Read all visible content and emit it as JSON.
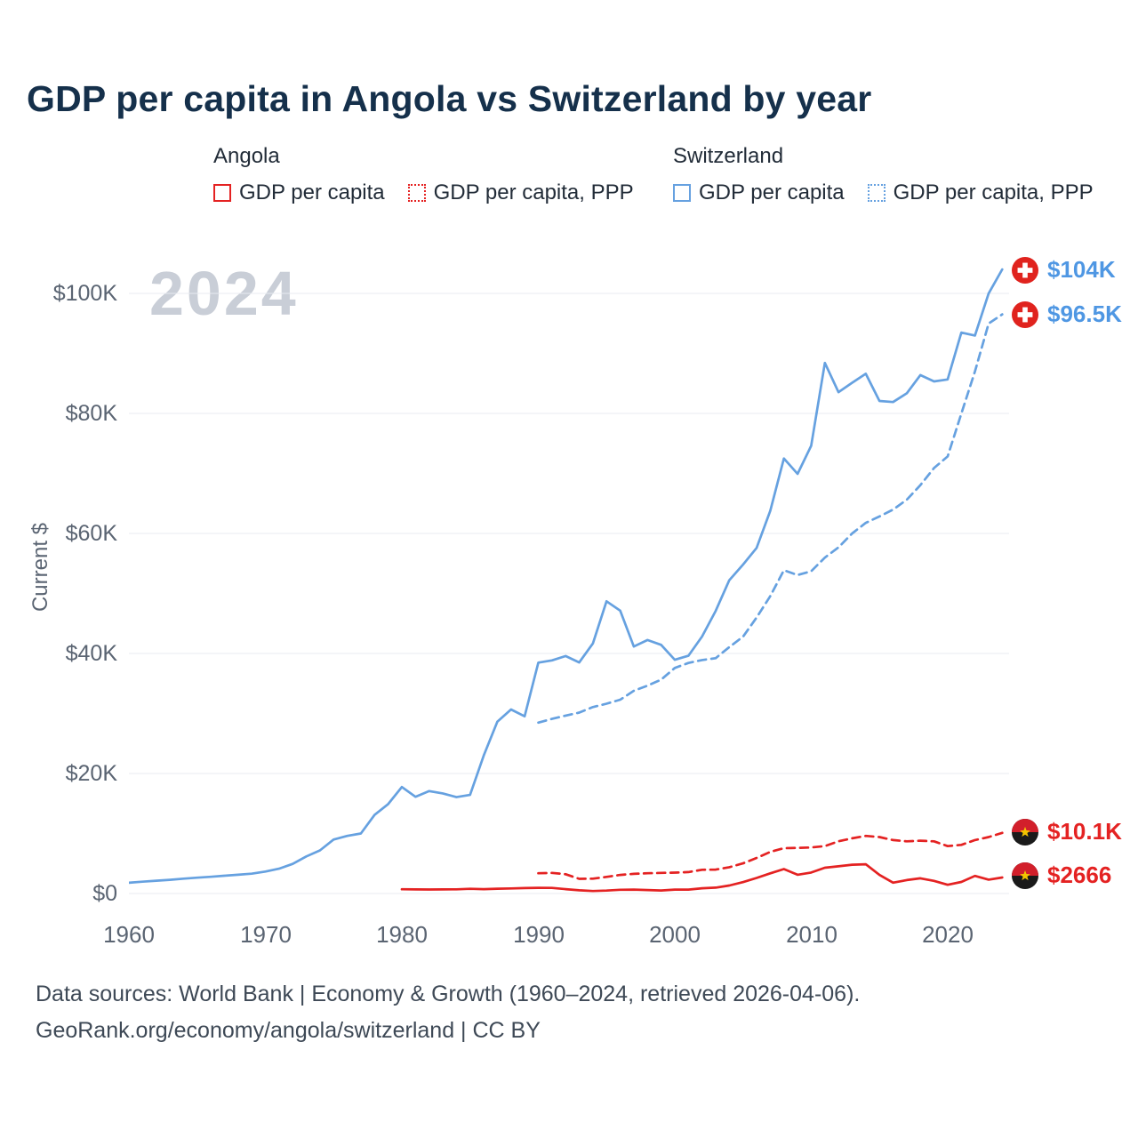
{
  "title": "GDP per capita in Angola vs Switzerland by year",
  "watermark": "2024",
  "legend": {
    "angola": {
      "label": "Angola",
      "items": [
        "GDP per capita",
        "GDP per capita, PPP"
      ]
    },
    "switzerland": {
      "label": "Switzerland",
      "items": [
        "GDP per capita",
        "GDP per capita, PPP"
      ]
    }
  },
  "axis": {
    "y_label": "Current $",
    "y_ticks": [
      "$0",
      "$20K",
      "$40K",
      "$60K",
      "$80K",
      "$100K"
    ],
    "x_ticks": [
      "1960",
      "1970",
      "1980",
      "1990",
      "2000",
      "2010",
      "2020"
    ]
  },
  "end_labels": [
    {
      "text": "$104K",
      "series": "Switzerland GDP per capita",
      "flag": "switzerland",
      "color": "#4f97e3"
    },
    {
      "text": "$96.5K",
      "series": "Switzerland GDP per capita, PPP",
      "flag": "switzerland",
      "color": "#4f97e3"
    },
    {
      "text": "$10.1K",
      "series": "Angola GDP per capita, PPP",
      "flag": "angola",
      "color": "#e42222"
    },
    {
      "text": "$2666",
      "series": "Angola GDP per capita",
      "flag": "angola",
      "color": "#e42222"
    }
  ],
  "footer": {
    "line1": "Data sources: World Bank | Economy & Growth (1960–2024, retrieved 2026-04-06).",
    "line2": "GeoRank.org/economy/angola/switzerland | CC BY"
  },
  "colors": {
    "angola": "#e42222",
    "switzerland": "#66a1e0",
    "title": "#15304b",
    "axis_text": "#5a6472",
    "watermark": "#c9ced7",
    "gridline": "#e8ebf0"
  },
  "chart_data": {
    "type": "line",
    "title": "GDP per capita in Angola vs Switzerland by year",
    "xlabel": "",
    "ylabel": "Current $",
    "xlim": [
      1960,
      2024.5
    ],
    "ylim": [
      0,
      100000
    ],
    "x_tick_values": [
      1960,
      1970,
      1980,
      1990,
      2000,
      2010,
      2020
    ],
    "y_tick_values": [
      0,
      20000,
      40000,
      60000,
      80000,
      100000
    ],
    "grid": "horizontal",
    "legend_position": "top",
    "series": [
      {
        "name": "Switzerland GDP per capita",
        "country": "Switzerland",
        "style": "solid",
        "color": "#66a1e0",
        "end_label": "$104K",
        "years": [
          1960,
          1961,
          1962,
          1963,
          1964,
          1965,
          1966,
          1967,
          1968,
          1969,
          1970,
          1971,
          1972,
          1973,
          1974,
          1975,
          1976,
          1977,
          1978,
          1979,
          1980,
          1981,
          1982,
          1983,
          1984,
          1985,
          1986,
          1987,
          1988,
          1989,
          1990,
          1991,
          1992,
          1993,
          1994,
          1995,
          1996,
          1997,
          1998,
          1999,
          2000,
          2001,
          2002,
          2003,
          2004,
          2005,
          2006,
          2007,
          2008,
          2009,
          2010,
          2011,
          2012,
          2013,
          2014,
          2015,
          2016,
          2017,
          2018,
          2019,
          2020,
          2021,
          2022,
          2023,
          2024
        ],
        "values": [
          1790,
          1970,
          2130,
          2280,
          2470,
          2630,
          2790,
          2960,
          3120,
          3310,
          3660,
          4130,
          4940,
          6180,
          7180,
          8990,
          9600,
          10000,
          13100,
          14900,
          17750,
          16120,
          17060,
          16680,
          16060,
          16430,
          23000,
          28630,
          30670,
          29530,
          38480,
          38840,
          39570,
          38500,
          41680,
          48690,
          47120,
          41160,
          42230,
          41440,
          38950,
          39620,
          42830,
          47090,
          52200,
          54800,
          57580,
          63780,
          72490,
          69930,
          74610,
          88420,
          83540,
          85110,
          86610,
          82080,
          81900,
          83350,
          86390,
          85330,
          85660,
          93460,
          92980,
          99990,
          104000
        ]
      },
      {
        "name": "Switzerland GDP per capita, PPP",
        "country": "Switzerland",
        "style": "dashed",
        "color": "#66a1e0",
        "end_label": "$96.5K",
        "years": [
          1990,
          1991,
          1992,
          1993,
          1994,
          1995,
          1996,
          1997,
          1998,
          1999,
          2000,
          2001,
          2002,
          2003,
          2004,
          2005,
          2006,
          2007,
          2008,
          2009,
          2010,
          2011,
          2012,
          2013,
          2014,
          2015,
          2016,
          2017,
          2018,
          2019,
          2020,
          2021,
          2022,
          2023,
          2024
        ],
        "values": [
          28480,
          29090,
          29640,
          30150,
          31060,
          31630,
          32300,
          33780,
          34640,
          35630,
          37580,
          38410,
          38910,
          39210,
          41060,
          42790,
          45990,
          49560,
          53870,
          53070,
          53700,
          55970,
          57680,
          60000,
          61770,
          62830,
          63970,
          65610,
          68040,
          70900,
          72830,
          79970,
          87000,
          94980,
          96500
        ]
      },
      {
        "name": "Angola GDP per capita",
        "country": "Angola",
        "style": "solid",
        "color": "#e42222",
        "end_label": "$2666",
        "years": [
          1980,
          1981,
          1982,
          1983,
          1984,
          1985,
          1986,
          1987,
          1988,
          1989,
          1990,
          1991,
          1992,
          1993,
          1994,
          1995,
          1996,
          1997,
          1998,
          1999,
          2000,
          2001,
          2002,
          2003,
          2004,
          2005,
          2006,
          2007,
          2008,
          2009,
          2010,
          2011,
          2012,
          2013,
          2014,
          2015,
          2016,
          2017,
          2018,
          2019,
          2020,
          2021,
          2022,
          2023,
          2024
        ],
        "values": [
          712,
          676,
          663,
          687,
          703,
          784,
          728,
          800,
          842,
          903,
          948,
          940,
          722,
          527,
          412,
          483,
          618,
          658,
          572,
          503,
          656,
          650,
          872,
          982,
          1330,
          1900,
          2600,
          3360,
          4080,
          3120,
          3500,
          4300,
          4540,
          4800,
          4870,
          3100,
          1810,
          2240,
          2540,
          2110,
          1450,
          1930,
          2930,
          2310,
          2666
        ]
      },
      {
        "name": "Angola GDP per capita, PPP",
        "country": "Angola",
        "style": "dashed",
        "color": "#e42222",
        "end_label": "$10.1K",
        "years": [
          1990,
          1991,
          1992,
          1993,
          1994,
          1995,
          1996,
          1997,
          1998,
          1999,
          2000,
          2001,
          2002,
          2003,
          2004,
          2005,
          2006,
          2007,
          2008,
          2009,
          2010,
          2011,
          2012,
          2013,
          2014,
          2015,
          2016,
          2017,
          2018,
          2019,
          2020,
          2021,
          2022,
          2023,
          2024
        ],
        "values": [
          3380,
          3430,
          3220,
          2440,
          2480,
          2770,
          3100,
          3270,
          3380,
          3430,
          3480,
          3570,
          3960,
          3990,
          4380,
          5020,
          5920,
          6930,
          7560,
          7600,
          7680,
          7890,
          8700,
          9200,
          9600,
          9400,
          8900,
          8700,
          8800,
          8700,
          7900,
          8100,
          8900,
          9400,
          10100
        ]
      }
    ]
  }
}
